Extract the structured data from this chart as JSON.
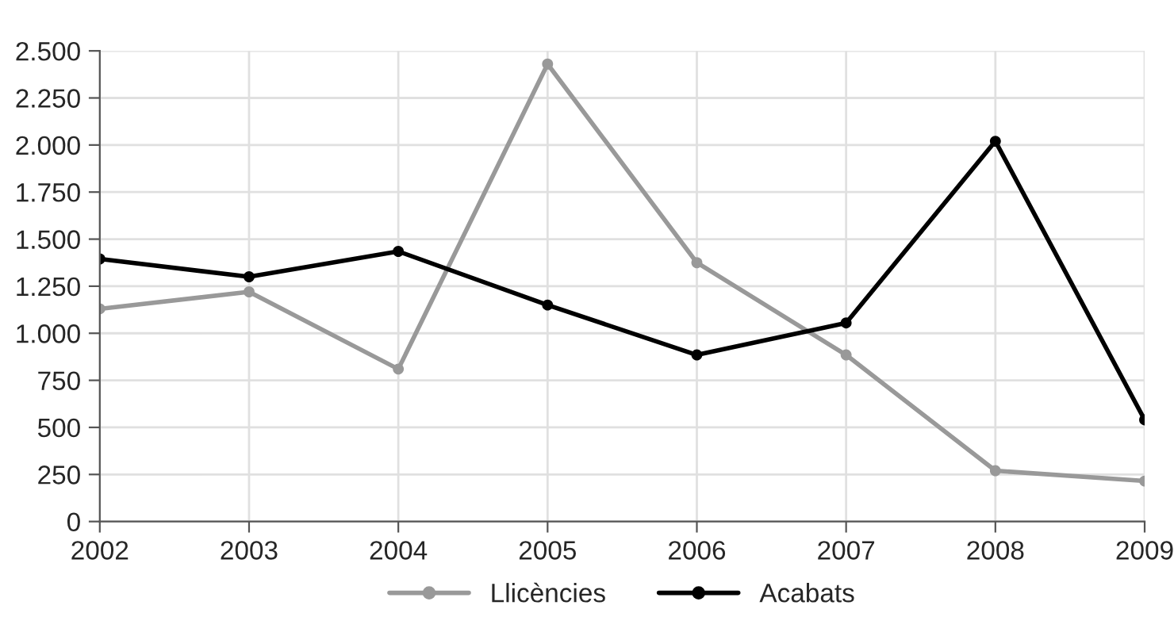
{
  "chart_data": {
    "type": "line",
    "categories": [
      "2002",
      "2003",
      "2004",
      "2005",
      "2006",
      "2007",
      "2008",
      "2009"
    ],
    "series": [
      {
        "name": "Llicències",
        "color": "#999999",
        "values": [
          1130,
          1220,
          810,
          2430,
          1375,
          885,
          270,
          215
        ]
      },
      {
        "name": "Acabats",
        "color": "#000000",
        "values": [
          1395,
          1300,
          1435,
          1150,
          885,
          1055,
          2020,
          540
        ]
      }
    ],
    "ylim": [
      0,
      2500
    ],
    "yticks": [
      0,
      250,
      500,
      750,
      {
        "value": 1000,
        "label": "1.000"
      },
      {
        "value": 1250,
        "label": "1.250"
      },
      {
        "value": 1500,
        "label": "1.500"
      },
      {
        "value": 1750,
        "label": "1.750"
      },
      {
        "value": 2000,
        "label": "2.000"
      },
      {
        "value": 2250,
        "label": "2.250"
      },
      {
        "value": 2500,
        "label": "2.500"
      }
    ],
    "grid": true,
    "legend": "bottom",
    "marker": "circle",
    "line_style": "solid"
  }
}
